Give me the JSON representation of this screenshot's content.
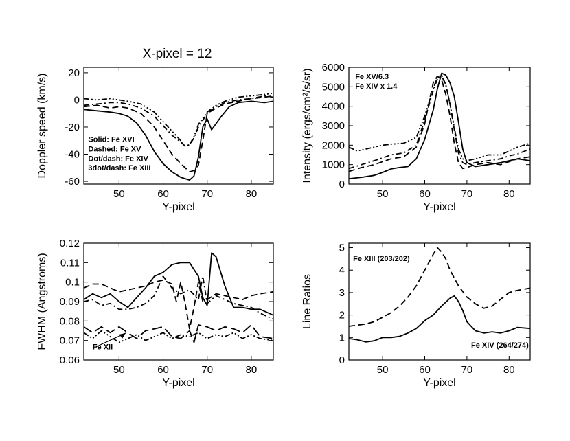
{
  "page_title": "X-pixel = 12",
  "chart_data": [
    {
      "id": "doppler",
      "type": "line",
      "title": "",
      "xlabel": "Y-pixel",
      "ylabel": "Doppler speed (km/s)",
      "xlim": [
        42,
        85
      ],
      "ylim": [
        -62,
        24
      ],
      "xticks": [
        50,
        60,
        70,
        80
      ],
      "yticks": [
        20,
        0,
        -20,
        -40,
        -60
      ],
      "annotations": [
        {
          "text": "Solid: Fe XVI",
          "x": 43,
          "y": -31
        },
        {
          "text": "Dashed: Fe XV",
          "x": 43,
          "y": -38
        },
        {
          "text": "Dot/dash: Fe XIV",
          "x": 43,
          "y": -45
        },
        {
          "text": "3dot/dash: Fe XIII",
          "x": 43,
          "y": -52
        }
      ],
      "series": [
        {
          "name": "Fe XVI",
          "style": "solid",
          "x": [
            42,
            45,
            48,
            50,
            52,
            54,
            56,
            58,
            60,
            62,
            64,
            66,
            67,
            68,
            69,
            70,
            71,
            73,
            75,
            77,
            80,
            83,
            85
          ],
          "y": [
            -7,
            -8,
            -9,
            -10,
            -12,
            -17,
            -26,
            -38,
            -47,
            -53,
            -57,
            -59,
            -56,
            -42,
            -20,
            -14,
            -22,
            -13,
            -5,
            -2,
            -1,
            -2,
            -1
          ]
        },
        {
          "name": "Fe XV",
          "style": "dashed",
          "x": [
            42,
            45,
            48,
            50,
            52,
            55,
            58,
            60,
            62,
            64,
            66,
            67,
            68,
            69,
            70,
            72,
            74,
            77,
            80,
            83,
            85
          ],
          "y": [
            -5,
            -4,
            -6,
            -5,
            -6,
            -10,
            -20,
            -30,
            -40,
            -47,
            -53,
            -52,
            -48,
            -30,
            -10,
            -6,
            -3,
            -1,
            1,
            2,
            3
          ]
        },
        {
          "name": "Fe XIV",
          "style": "dotdash",
          "x": [
            42,
            45,
            48,
            50,
            52,
            55,
            58,
            60,
            62,
            64,
            65,
            66,
            67,
            68,
            70,
            72,
            74,
            77,
            80,
            83,
            85
          ],
          "y": [
            -4,
            -3,
            -2,
            -2,
            -3,
            -6,
            -12,
            -19,
            -26,
            -31,
            -34,
            -33,
            -28,
            -20,
            -10,
            -5,
            -2,
            0,
            1,
            3,
            2
          ]
        },
        {
          "name": "Fe XIII",
          "style": "3dotdash",
          "x": [
            42,
            45,
            48,
            50,
            52,
            55,
            58,
            60,
            62,
            64,
            65,
            66,
            67,
            68,
            70,
            72,
            74,
            77,
            80,
            83,
            85
          ],
          "y": [
            1,
            0,
            1,
            0,
            -1,
            -3,
            -9,
            -16,
            -23,
            -30,
            -34,
            -33,
            -27,
            -18,
            -9,
            -4,
            -1,
            2,
            3,
            4,
            5
          ]
        }
      ]
    },
    {
      "id": "intensity",
      "type": "line",
      "title": "",
      "xlabel": "Y-pixel",
      "ylabel": "Intensity (ergs/cm²/s/sr)",
      "xlim": [
        42,
        85
      ],
      "ylim": [
        0,
        6000
      ],
      "xticks": [
        50,
        60,
        70,
        80
      ],
      "yticks": [
        6000,
        5000,
        4000,
        3000,
        2000,
        1000,
        0
      ],
      "annotations": [
        {
          "text": "Fe XV/6.3",
          "x": 43.5,
          "y": 5400
        },
        {
          "text": "Fe XIV x 1.4",
          "x": 43.5,
          "y": 4900
        }
      ],
      "series": [
        {
          "name": "solid",
          "style": "solid",
          "x": [
            42,
            45,
            48,
            50,
            52,
            54,
            56,
            58,
            60,
            62,
            63,
            64,
            65,
            66,
            67,
            68,
            69,
            70,
            72,
            75,
            78,
            80,
            82,
            85
          ],
          "y": [
            280,
            350,
            450,
            600,
            780,
            850,
            900,
            1300,
            2300,
            3800,
            4900,
            5700,
            5600,
            5200,
            4500,
            3200,
            1800,
            1100,
            900,
            1000,
            1100,
            1200,
            1300,
            1200
          ]
        },
        {
          "name": "dashed",
          "style": "dashed",
          "x": [
            42,
            45,
            48,
            50,
            52,
            55,
            58,
            60,
            61,
            62,
            63,
            64,
            65,
            66,
            67,
            68,
            69,
            70,
            72,
            75,
            78,
            80,
            82,
            85
          ],
          "y": [
            650,
            850,
            1000,
            1150,
            1300,
            1400,
            1900,
            3100,
            4200,
            5200,
            5550,
            5350,
            4600,
            3500,
            2100,
            1100,
            800,
            850,
            1000,
            1100,
            1000,
            1150,
            1300,
            1400
          ]
        },
        {
          "name": "dotdash",
          "style": "dotdash",
          "x": [
            42,
            45,
            48,
            50,
            52,
            55,
            58,
            60,
            62,
            63,
            64,
            65,
            66,
            67,
            68,
            69,
            70,
            72,
            75,
            78,
            80,
            82,
            85
          ],
          "y": [
            800,
            1000,
            1200,
            1350,
            1500,
            1600,
            2000,
            3300,
            4800,
            5400,
            5550,
            5100,
            4100,
            2800,
            1600,
            1100,
            1000,
            1100,
            1200,
            1300,
            1450,
            1550,
            1800
          ]
        },
        {
          "name": "3dotdash",
          "style": "3dotdash",
          "x": [
            42,
            44,
            46,
            48,
            50,
            52,
            55,
            58,
            60,
            62,
            63,
            64,
            65,
            66,
            67,
            68,
            69,
            70,
            72,
            75,
            78,
            80,
            82,
            85
          ],
          "y": [
            1900,
            1700,
            1800,
            1900,
            2000,
            2050,
            2100,
            2400,
            3500,
            4900,
            5500,
            5600,
            5100,
            4100,
            2900,
            1800,
            1300,
            1200,
            1300,
            1500,
            1500,
            1700,
            1900,
            2100
          ]
        }
      ]
    },
    {
      "id": "fwhm",
      "type": "line",
      "title": "",
      "xlabel": "Y-pixel",
      "ylabel": "FWHM (Angstroms)",
      "xlim": [
        42,
        85
      ],
      "ylim": [
        0.06,
        0.12
      ],
      "xticks": [
        50,
        60,
        70,
        80
      ],
      "yticks": [
        0.12,
        0.11,
        0.1,
        0.09,
        0.08,
        0.07,
        0.06
      ],
      "annotations": [
        {
          "text": "Fe XII",
          "x": 44,
          "y": 0.0655
        }
      ],
      "series": [
        {
          "name": "solid",
          "style": "solid",
          "x": [
            42,
            44,
            46,
            48,
            50,
            52,
            54,
            56,
            58,
            60,
            62,
            64,
            66,
            68,
            69,
            70,
            71,
            72,
            74,
            76,
            78,
            80,
            82,
            85
          ],
          "y": [
            0.091,
            0.094,
            0.092,
            0.094,
            0.09,
            0.087,
            0.092,
            0.097,
            0.103,
            0.105,
            0.109,
            0.11,
            0.11,
            0.103,
            0.092,
            0.088,
            0.115,
            0.113,
            0.098,
            0.087,
            0.087,
            0.086,
            0.086,
            0.083
          ]
        },
        {
          "name": "dashed",
          "style": "dashed",
          "x": [
            42,
            44,
            46,
            48,
            50,
            52,
            54,
            56,
            58,
            60,
            62,
            63,
            64,
            65,
            66,
            67,
            68,
            69,
            70,
            72,
            74,
            76,
            78,
            80,
            82,
            85
          ],
          "y": [
            0.097,
            0.099,
            0.099,
            0.097,
            0.095,
            0.096,
            0.097,
            0.098,
            0.1,
            0.101,
            0.099,
            0.09,
            0.1,
            0.089,
            0.076,
            0.087,
            0.1,
            0.09,
            0.091,
            0.094,
            0.093,
            0.092,
            0.091,
            0.093,
            0.094,
            0.095
          ]
        },
        {
          "name": "dotdash",
          "style": "dotdash",
          "x": [
            42,
            44,
            46,
            48,
            50,
            52,
            54,
            56,
            58,
            60,
            62,
            64,
            66,
            68,
            69,
            70,
            72,
            74,
            76,
            78,
            80,
            82,
            85
          ],
          "y": [
            0.09,
            0.091,
            0.088,
            0.089,
            0.086,
            0.086,
            0.087,
            0.089,
            0.093,
            0.103,
            0.097,
            0.094,
            0.096,
            0.091,
            0.103,
            0.089,
            0.093,
            0.091,
            0.089,
            0.088,
            0.087,
            0.084,
            0.081
          ]
        },
        {
          "name": "long dash",
          "style": "longdash",
          "x": [
            42,
            44,
            46,
            48,
            50,
            52,
            54,
            56,
            58,
            60,
            62,
            64,
            66,
            67,
            68,
            70,
            72,
            74,
            76,
            78,
            80,
            82,
            85
          ],
          "y": [
            0.077,
            0.074,
            0.077,
            0.074,
            0.077,
            0.074,
            0.071,
            0.075,
            0.076,
            0.077,
            0.072,
            0.071,
            0.075,
            0.069,
            0.078,
            0.077,
            0.075,
            0.077,
            0.076,
            0.074,
            0.078,
            0.072,
            0.071
          ]
        },
        {
          "name": "3dotdash",
          "style": "3dotdash",
          "x": [
            42,
            44,
            46,
            48,
            50,
            52,
            54,
            56,
            58,
            60,
            62,
            64,
            66,
            68,
            70,
            72,
            74,
            76,
            78,
            80,
            82,
            85
          ],
          "y": [
            0.074,
            0.071,
            0.075,
            0.072,
            0.069,
            0.071,
            0.073,
            0.07,
            0.072,
            0.074,
            0.071,
            0.073,
            0.072,
            0.074,
            0.071,
            0.073,
            0.072,
            0.074,
            0.071,
            0.073,
            0.071,
            0.07
          ]
        }
      ]
    },
    {
      "id": "ratios",
      "type": "line",
      "title": "",
      "xlabel": "Y-pixel",
      "ylabel": "Line Ratios",
      "xlim": [
        42,
        85
      ],
      "ylim": [
        0,
        5.2
      ],
      "xticks": [
        50,
        60,
        70,
        80
      ],
      "yticks": [
        5,
        4,
        3,
        2,
        1,
        0
      ],
      "annotations": [
        {
          "text": "Fe XIII (203/202)",
          "x": 43,
          "y": 4.4
        },
        {
          "text": "Fe XIV (264/274)",
          "x": 71,
          "y": 0.55
        }
      ],
      "series": [
        {
          "name": "Fe XIII (203/202)",
          "style": "dashed",
          "x": [
            42,
            44,
            46,
            48,
            50,
            52,
            54,
            56,
            58,
            60,
            62,
            63,
            64,
            65,
            66,
            68,
            70,
            72,
            74,
            76,
            78,
            80,
            82,
            85
          ],
          "y": [
            1.5,
            1.55,
            1.6,
            1.7,
            1.9,
            2.1,
            2.4,
            2.8,
            3.3,
            4.0,
            4.7,
            5.0,
            4.8,
            4.5,
            4.0,
            3.3,
            2.8,
            2.5,
            2.3,
            2.4,
            2.7,
            3.0,
            3.1,
            3.2
          ]
        },
        {
          "name": "Fe XIV (264/274)",
          "style": "solid",
          "x": [
            42,
            44,
            46,
            48,
            50,
            52,
            54,
            56,
            58,
            60,
            62,
            64,
            66,
            67,
            68,
            69,
            70,
            72,
            74,
            76,
            78,
            80,
            82,
            85
          ],
          "y": [
            0.95,
            0.9,
            0.8,
            0.85,
            1.0,
            1.0,
            1.05,
            1.2,
            1.4,
            1.75,
            2.0,
            2.4,
            2.75,
            2.85,
            2.6,
            2.2,
            1.7,
            1.3,
            1.2,
            1.25,
            1.2,
            1.3,
            1.45,
            1.4
          ]
        }
      ]
    }
  ]
}
